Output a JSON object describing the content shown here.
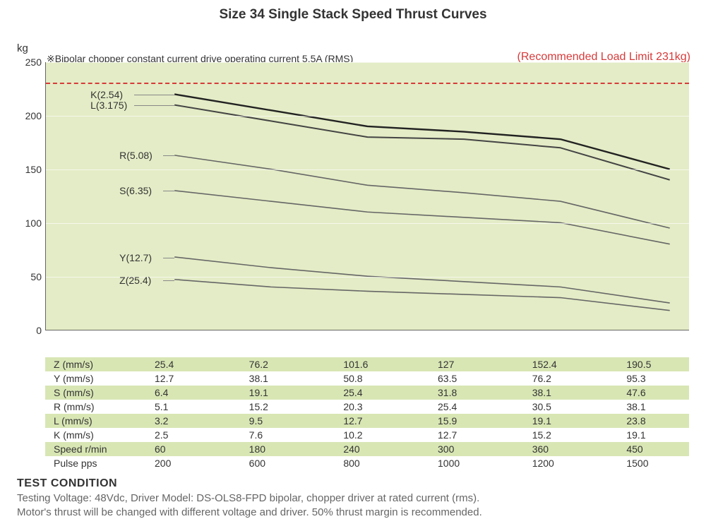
{
  "title": "Size 34 Single Stack Speed Thrust Curves",
  "yunit": "kg",
  "top_note": "※Bipolar chopper constant current drive operating current 5.5A (RMS)",
  "limit_label": "(Recommended Load Limit 231kg)",
  "chart": {
    "type": "line",
    "background_color": "#e3ecc6",
    "grid_color": "#ffffff",
    "axis_color": "#666666",
    "label_fontsize": 14,
    "ylim": [
      0,
      250
    ],
    "yticks": [
      0,
      50,
      100,
      150,
      200,
      250
    ],
    "limit_value": 231,
    "limit_color": "#d73a3a",
    "x_positions": [
      0.2,
      0.35,
      0.5,
      0.65,
      0.8,
      0.97
    ],
    "series": [
      {
        "name": "K(2.54)",
        "color": "#222222",
        "width": 2.4,
        "label_x": 0.135,
        "values": [
          220,
          205,
          190,
          185,
          178,
          150
        ]
      },
      {
        "name": "L(3.175)",
        "color": "#444444",
        "width": 2.0,
        "label_x": 0.135,
        "values": [
          210,
          195,
          180,
          178,
          170,
          140
        ]
      },
      {
        "name": "R(5.08)",
        "color": "#666666",
        "width": 1.6,
        "label_x": 0.18,
        "values": [
          163,
          150,
          135,
          128,
          120,
          95
        ]
      },
      {
        "name": "S(6.35)",
        "color": "#666666",
        "width": 1.6,
        "label_x": 0.18,
        "values": [
          130,
          120,
          110,
          105,
          100,
          80
        ]
      },
      {
        "name": "Y(12.7)",
        "color": "#666666",
        "width": 1.6,
        "label_x": 0.18,
        "values": [
          68,
          58,
          50,
          45,
          40,
          25
        ]
      },
      {
        "name": "Z(25.4)",
        "color": "#666666",
        "width": 1.6,
        "label_x": 0.18,
        "values": [
          47,
          40,
          36,
          33,
          30,
          18
        ]
      }
    ]
  },
  "table": {
    "alt_row_color": "#d8e6b4",
    "rows": [
      {
        "label": "Z (mm/s)",
        "cells": [
          "25.4",
          "76.2",
          "101.6",
          "127",
          "152.4",
          "190.5"
        ]
      },
      {
        "label": "Y (mm/s)",
        "cells": [
          "12.7",
          "38.1",
          "50.8",
          "63.5",
          "76.2",
          "95.3"
        ]
      },
      {
        "label": "S (mm/s)",
        "cells": [
          "6.4",
          "19.1",
          "25.4",
          "31.8",
          "38.1",
          "47.6"
        ]
      },
      {
        "label": "R (mm/s)",
        "cells": [
          "5.1",
          "15.2",
          "20.3",
          "25.4",
          "30.5",
          "38.1"
        ]
      },
      {
        "label": "L (mm/s)",
        "cells": [
          "3.2",
          "9.5",
          "12.7",
          "15.9",
          "19.1",
          "23.8"
        ]
      },
      {
        "label": "K (mm/s)",
        "cells": [
          "2.5",
          "7.6",
          "10.2",
          "12.7",
          "15.2",
          "19.1"
        ]
      },
      {
        "label": "Speed  r/min",
        "cells": [
          "60",
          "180",
          "240",
          "300",
          "360",
          "450"
        ]
      },
      {
        "label": "Pulse  pps",
        "cells": [
          "200",
          "600",
          "800",
          "1000",
          "1200",
          "1500"
        ]
      }
    ]
  },
  "test_condition": {
    "heading": "TEST CONDITION",
    "line1": "Testing Voltage: 48Vdc, Driver Model: DS-OLS8-FPD bipolar, chopper driver at rated current (rms).",
    "line2": "Motor's thrust will be changed with different voltage and driver. 50% thrust margin is recommended."
  }
}
